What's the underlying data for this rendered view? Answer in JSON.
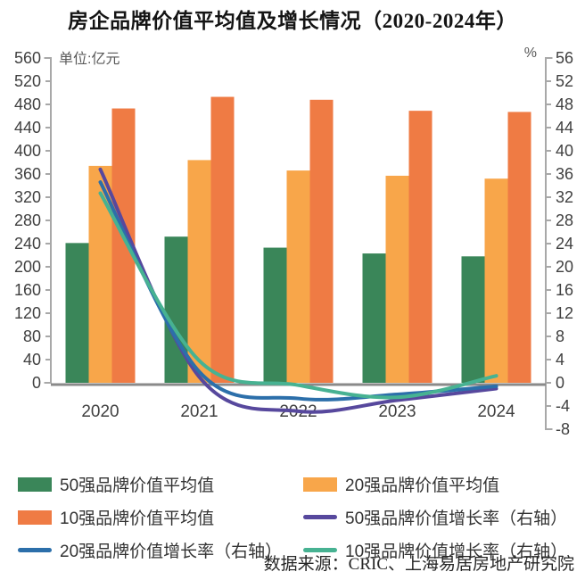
{
  "title": "房企品牌价值平均值及增长情况（2020-2024年）",
  "source": "数据来源：CRIC、上海易居房地产研究院",
  "chart_data": {
    "type": "bar+line combo",
    "title": "房企品牌价值平均值及增长情况（2020-2024年）",
    "categories": [
      "2020",
      "2021",
      "2022",
      "2023",
      "2024"
    ],
    "unit_label": "单位:亿元",
    "right_axis_label": "%",
    "left_axis": {
      "min": 0,
      "max": 560,
      "step": 40
    },
    "right_axis": {
      "min": -8,
      "max": 56,
      "step": 4
    },
    "grid": false,
    "legend_position": "bottom",
    "bar_series": [
      {
        "name": "50强品牌价值平均值",
        "color": "#3a8659",
        "axis": "left",
        "values": [
          241,
          252,
          233,
          223,
          218
        ]
      },
      {
        "name": "20强品牌价值平均值",
        "color": "#f8a64a",
        "axis": "left",
        "values": [
          374,
          384,
          366,
          357,
          352
        ]
      },
      {
        "name": "10强品牌价值平均值",
        "color": "#ef7b44",
        "axis": "left",
        "values": [
          473,
          493,
          488,
          469,
          467
        ]
      }
    ],
    "line_series": [
      {
        "name": "50强品牌价值增长率（右轴）",
        "color": "#57489d",
        "axis": "right",
        "values": [
          36.8,
          1.0,
          -4.9,
          -3.0,
          -1.0
        ]
      },
      {
        "name": "20强品牌价值增长率（右轴）",
        "color": "#2c6faa",
        "axis": "right",
        "values": [
          34.6,
          1.9,
          -2.7,
          -2.0,
          -0.6
        ]
      },
      {
        "name": "10强品牌价值增长率（右轴）",
        "color": "#47b292",
        "axis": "right",
        "values": [
          32.7,
          3.8,
          -0.4,
          -2.5,
          1.2
        ]
      }
    ]
  },
  "legend": {
    "items": [
      {
        "label": "50强品牌价值平均值",
        "type": "bar",
        "color": "#3a8659"
      },
      {
        "label": "20强品牌价值平均值",
        "type": "bar",
        "color": "#f8a64a"
      },
      {
        "label": "10强品牌价值平均值",
        "type": "bar",
        "color": "#ef7b44"
      },
      {
        "label": "50强品牌价值增长率（右轴）",
        "type": "line",
        "color": "#57489d"
      },
      {
        "label": "20强品牌价值增长率（右轴）",
        "type": "line",
        "color": "#2c6faa"
      },
      {
        "label": "10强品牌价值增长率（右轴）",
        "type": "line",
        "color": "#47b292"
      }
    ]
  },
  "style": {
    "axis_line_color": "#a8a8a8",
    "baseline_color": "#8a8a8a",
    "tick_label_color": "#404040"
  }
}
